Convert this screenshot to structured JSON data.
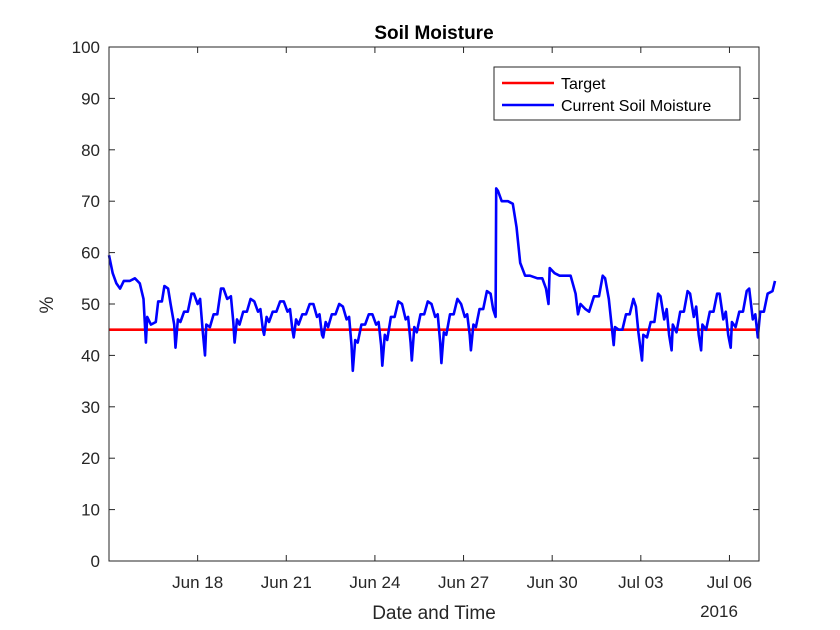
{
  "chart_data": {
    "type": "line",
    "title": "Soil Moisture",
    "xlabel": "Date and Time",
    "ylabel": "%",
    "year_label": "2016",
    "ylim": [
      0,
      100
    ],
    "yticks": [
      0,
      10,
      20,
      30,
      40,
      50,
      60,
      70,
      80,
      90,
      100
    ],
    "xlim": [
      "2016-06-15",
      "2016-07-07"
    ],
    "xticks": [
      {
        "date": "2016-06-18",
        "label": "Jun 18"
      },
      {
        "date": "2016-06-21",
        "label": "Jun 21"
      },
      {
        "date": "2016-06-24",
        "label": "Jun 24"
      },
      {
        "date": "2016-06-27",
        "label": "Jun 27"
      },
      {
        "date": "2016-06-30",
        "label": "Jun 30"
      },
      {
        "date": "2016-07-03",
        "label": "Jul 03"
      },
      {
        "date": "2016-07-06",
        "label": "Jul 06"
      }
    ],
    "grid": false,
    "legend_position": "top-right",
    "series": [
      {
        "name": "Target",
        "color": "#ff0000",
        "points": [
          [
            "2016-06-15",
            45
          ],
          [
            "2016-07-07",
            45
          ]
        ]
      },
      {
        "name": "Current Soil Moisture",
        "color": "#0000ff",
        "points": [
          [
            "2016-06-15 00:00",
            59.5
          ],
          [
            "2016-06-15 03:00",
            56
          ],
          [
            "2016-06-15 06:00",
            54
          ],
          [
            "2016-06-15 09:00",
            53
          ],
          [
            "2016-06-15 12:00",
            54.5
          ],
          [
            "2016-06-15 17:00",
            54.5
          ],
          [
            "2016-06-15 21:00",
            55
          ],
          [
            "2016-06-16 01:00",
            54
          ],
          [
            "2016-06-16 04:00",
            51
          ],
          [
            "2016-06-16 06:00",
            42.5
          ],
          [
            "2016-06-16 07:00",
            47.5
          ],
          [
            "2016-06-16 10:00",
            46
          ],
          [
            "2016-06-16 14:00",
            46.5
          ],
          [
            "2016-06-16 16:00",
            50.5
          ],
          [
            "2016-06-16 19:00",
            50.5
          ],
          [
            "2016-06-16 21:00",
            53.5
          ],
          [
            "2016-06-17 00:00",
            53
          ],
          [
            "2016-06-17 02:00",
            50
          ],
          [
            "2016-06-17 05:00",
            46
          ],
          [
            "2016-06-17 06:00",
            41.5
          ],
          [
            "2016-06-17 08:00",
            47
          ],
          [
            "2016-06-17 10:00",
            46.5
          ],
          [
            "2016-06-17 13:00",
            48.5
          ],
          [
            "2016-06-17 16:00",
            48.5
          ],
          [
            "2016-06-17 19:00",
            52
          ],
          [
            "2016-06-17 21:00",
            52
          ],
          [
            "2016-06-18 00:00",
            50
          ],
          [
            "2016-06-18 02:00",
            51
          ],
          [
            "2016-06-18 04:00",
            45
          ],
          [
            "2016-06-18 06:00",
            40
          ],
          [
            "2016-06-18 07:00",
            46
          ],
          [
            "2016-06-18 10:00",
            45.5
          ],
          [
            "2016-06-18 13:00",
            48
          ],
          [
            "2016-06-18 16:00",
            48
          ],
          [
            "2016-06-18 19:00",
            53
          ],
          [
            "2016-06-18 21:00",
            53
          ],
          [
            "2016-06-19 00:00",
            51
          ],
          [
            "2016-06-19 03:00",
            51.5
          ],
          [
            "2016-06-19 05:00",
            46.5
          ],
          [
            "2016-06-19 06:00",
            42.5
          ],
          [
            "2016-06-19 08:00",
            47
          ],
          [
            "2016-06-19 10:00",
            46
          ],
          [
            "2016-06-19 13:00",
            48.5
          ],
          [
            "2016-06-19 16:00",
            48.5
          ],
          [
            "2016-06-19 19:00",
            51
          ],
          [
            "2016-06-19 22:00",
            50.5
          ],
          [
            "2016-06-20 01:00",
            48.5
          ],
          [
            "2016-06-20 03:00",
            49
          ],
          [
            "2016-06-20 05:00",
            45
          ],
          [
            "2016-06-20 06:00",
            44
          ],
          [
            "2016-06-20 08:00",
            47.5
          ],
          [
            "2016-06-20 10:00",
            46.5
          ],
          [
            "2016-06-20 13:00",
            48.5
          ],
          [
            "2016-06-20 16:00",
            48.5
          ],
          [
            "2016-06-20 19:00",
            50.5
          ],
          [
            "2016-06-20 22:00",
            50.5
          ],
          [
            "2016-06-21 01:00",
            48.5
          ],
          [
            "2016-06-21 03:00",
            49
          ],
          [
            "2016-06-21 05:00",
            45
          ],
          [
            "2016-06-21 06:00",
            43.5
          ],
          [
            "2016-06-21 08:00",
            47
          ],
          [
            "2016-06-21 10:00",
            46
          ],
          [
            "2016-06-21 13:00",
            48
          ],
          [
            "2016-06-21 16:00",
            48
          ],
          [
            "2016-06-21 19:00",
            50
          ],
          [
            "2016-06-21 22:00",
            50
          ],
          [
            "2016-06-22 01:00",
            47.5
          ],
          [
            "2016-06-22 03:00",
            48
          ],
          [
            "2016-06-22 05:00",
            44
          ],
          [
            "2016-06-22 06:00",
            43.5
          ],
          [
            "2016-06-22 08:00",
            46.5
          ],
          [
            "2016-06-22 10:00",
            45.5
          ],
          [
            "2016-06-22 13:00",
            48
          ],
          [
            "2016-06-22 16:00",
            48
          ],
          [
            "2016-06-22 19:00",
            50
          ],
          [
            "2016-06-22 22:00",
            49.5
          ],
          [
            "2016-06-23 01:00",
            47
          ],
          [
            "2016-06-23 03:00",
            47.5
          ],
          [
            "2016-06-23 05:00",
            42
          ],
          [
            "2016-06-23 06:00",
            37
          ],
          [
            "2016-06-23 08:00",
            43
          ],
          [
            "2016-06-23 10:00",
            42.5
          ],
          [
            "2016-06-23 13:00",
            46
          ],
          [
            "2016-06-23 16:00",
            46
          ],
          [
            "2016-06-23 19:00",
            48
          ],
          [
            "2016-06-23 22:00",
            48
          ],
          [
            "2016-06-24 01:00",
            46
          ],
          [
            "2016-06-24 03:00",
            46.5
          ],
          [
            "2016-06-24 05:00",
            42
          ],
          [
            "2016-06-24 06:00",
            38
          ],
          [
            "2016-06-24 08:00",
            44
          ],
          [
            "2016-06-24 10:00",
            43
          ],
          [
            "2016-06-24 13:00",
            47.5
          ],
          [
            "2016-06-24 16:00",
            47.5
          ],
          [
            "2016-06-24 19:00",
            50.5
          ],
          [
            "2016-06-24 22:00",
            50
          ],
          [
            "2016-06-25 01:00",
            47
          ],
          [
            "2016-06-25 03:00",
            47.5
          ],
          [
            "2016-06-25 05:00",
            42.5
          ],
          [
            "2016-06-25 06:00",
            39
          ],
          [
            "2016-06-25 08:00",
            45.5
          ],
          [
            "2016-06-25 10:00",
            44.5
          ],
          [
            "2016-06-25 13:00",
            48
          ],
          [
            "2016-06-25 16:00",
            48
          ],
          [
            "2016-06-25 19:00",
            50.5
          ],
          [
            "2016-06-25 22:00",
            50
          ],
          [
            "2016-06-26 01:00",
            47.5
          ],
          [
            "2016-06-26 03:00",
            48
          ],
          [
            "2016-06-26 05:00",
            42.5
          ],
          [
            "2016-06-26 06:00",
            38.5
          ],
          [
            "2016-06-26 08:00",
            44.5
          ],
          [
            "2016-06-26 10:00",
            44
          ],
          [
            "2016-06-26 13:00",
            48
          ],
          [
            "2016-06-26 16:00",
            48
          ],
          [
            "2016-06-26 19:00",
            51
          ],
          [
            "2016-06-26 22:00",
            50
          ],
          [
            "2016-06-27 01:00",
            47.5
          ],
          [
            "2016-06-27 03:00",
            48
          ],
          [
            "2016-06-27 05:00",
            44
          ],
          [
            "2016-06-27 06:00",
            41
          ],
          [
            "2016-06-27 08:00",
            46
          ],
          [
            "2016-06-27 10:00",
            45.5
          ],
          [
            "2016-06-27 13:00",
            49
          ],
          [
            "2016-06-27 16:00",
            49
          ],
          [
            "2016-06-27 19:00",
            52.5
          ],
          [
            "2016-06-27 22:00",
            52
          ],
          [
            "2016-06-28 00:00",
            49
          ],
          [
            "2016-06-28 02:00",
            47.5
          ],
          [
            "2016-06-28 02:30",
            72.5
          ],
          [
            "2016-06-28 04:00",
            72
          ],
          [
            "2016-06-28 07:00",
            70
          ],
          [
            "2016-06-28 12:00",
            70
          ],
          [
            "2016-06-28 16:00",
            69.5
          ],
          [
            "2016-06-28 19:00",
            65
          ],
          [
            "2016-06-28 22:00",
            58
          ],
          [
            "2016-06-29 02:00",
            55.5
          ],
          [
            "2016-06-29 06:00",
            55.5
          ],
          [
            "2016-06-29 12:00",
            55
          ],
          [
            "2016-06-29 16:00",
            55
          ],
          [
            "2016-06-29 19:00",
            53
          ],
          [
            "2016-06-29 21:00",
            50
          ],
          [
            "2016-06-29 22:00",
            57
          ],
          [
            "2016-06-30 02:00",
            56
          ],
          [
            "2016-06-30 06:00",
            55.5
          ],
          [
            "2016-06-30 12:00",
            55.5
          ],
          [
            "2016-06-30 15:00",
            55.5
          ],
          [
            "2016-06-30 19:00",
            52
          ],
          [
            "2016-06-30 21:00",
            48
          ],
          [
            "2016-06-30 23:00",
            50
          ],
          [
            "2016-07-01 03:00",
            49
          ],
          [
            "2016-07-01 06:00",
            48.5
          ],
          [
            "2016-07-01 10:00",
            51.5
          ],
          [
            "2016-07-01 14:00",
            51.5
          ],
          [
            "2016-07-01 17:00",
            55.5
          ],
          [
            "2016-07-01 19:00",
            55
          ],
          [
            "2016-07-01 22:00",
            51
          ],
          [
            "2016-07-02 02:00",
            42
          ],
          [
            "2016-07-02 03:00",
            45.5
          ],
          [
            "2016-07-02 06:00",
            45
          ],
          [
            "2016-07-02 09:00",
            45
          ],
          [
            "2016-07-02 12:00",
            48
          ],
          [
            "2016-07-02 15:00",
            48
          ],
          [
            "2016-07-02 18:00",
            51
          ],
          [
            "2016-07-02 20:00",
            49.5
          ],
          [
            "2016-07-02 22:00",
            44.5
          ],
          [
            "2016-07-03 01:00",
            39
          ],
          [
            "2016-07-03 02:00",
            44
          ],
          [
            "2016-07-03 05:00",
            43.5
          ],
          [
            "2016-07-03 08:00",
            46.5
          ],
          [
            "2016-07-03 11:00",
            46.5
          ],
          [
            "2016-07-03 14:00",
            52
          ],
          [
            "2016-07-03 16:00",
            51.5
          ],
          [
            "2016-07-03 19:00",
            47
          ],
          [
            "2016-07-03 21:00",
            49
          ],
          [
            "2016-07-03 23:00",
            44
          ],
          [
            "2016-07-04 01:00",
            41
          ],
          [
            "2016-07-04 02:00",
            46
          ],
          [
            "2016-07-04 05:00",
            44.5
          ],
          [
            "2016-07-04 08:00",
            48.5
          ],
          [
            "2016-07-04 11:00",
            48.5
          ],
          [
            "2016-07-04 14:00",
            52.5
          ],
          [
            "2016-07-04 16:00",
            52
          ],
          [
            "2016-07-04 19:00",
            47.5
          ],
          [
            "2016-07-04 21:00",
            49.5
          ],
          [
            "2016-07-04 23:00",
            44
          ],
          [
            "2016-07-05 01:00",
            41
          ],
          [
            "2016-07-05 02:00",
            46
          ],
          [
            "2016-07-05 05:00",
            45
          ],
          [
            "2016-07-05 08:00",
            48.5
          ],
          [
            "2016-07-05 11:00",
            48.5
          ],
          [
            "2016-07-05 14:00",
            52
          ],
          [
            "2016-07-05 16:00",
            52
          ],
          [
            "2016-07-05 19:00",
            47
          ],
          [
            "2016-07-05 21:00",
            48.5
          ],
          [
            "2016-07-05 23:00",
            44
          ],
          [
            "2016-07-06 01:00",
            41.5
          ],
          [
            "2016-07-06 02:00",
            46.5
          ],
          [
            "2016-07-06 05:00",
            45.5
          ],
          [
            "2016-07-06 08:00",
            48.5
          ],
          [
            "2016-07-06 11:00",
            48.5
          ],
          [
            "2016-07-06 14:00",
            52.5
          ],
          [
            "2016-07-06 16:00",
            53
          ],
          [
            "2016-07-06 19:00",
            47
          ],
          [
            "2016-07-06 21:00",
            48
          ],
          [
            "2016-07-06 23:00",
            43.5
          ],
          [
            "2016-07-07 01:00",
            48.5
          ],
          [
            "2016-07-07 04:00",
            48.5
          ],
          [
            "2016-07-07 07:00",
            52
          ],
          [
            "2016-07-07 11:00",
            52.5
          ],
          [
            "2016-07-07 13:00",
            54.5
          ]
        ]
      }
    ]
  }
}
